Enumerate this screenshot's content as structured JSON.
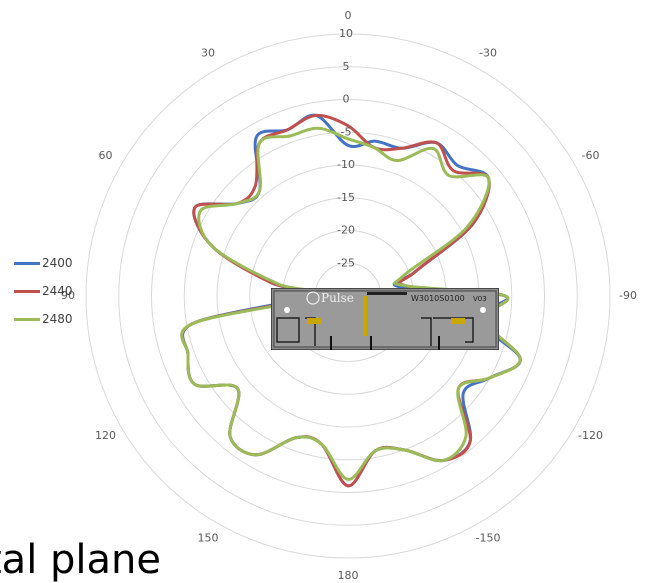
{
  "chart_data": {
    "type": "polar-line",
    "radial_ticks": [
      -25,
      -20,
      -15,
      -10,
      -5,
      0,
      5,
      10
    ],
    "rlim": [
      -30,
      10
    ],
    "angle_ticks": [
      0,
      -30,
      -60,
      -90,
      -120,
      -150,
      180,
      150,
      120,
      90,
      60,
      30
    ],
    "grid": true,
    "legend_position": "left",
    "series": [
      {
        "name": "2400",
        "color": "#4472c4",
        "angles": [
          0,
          10,
          20,
          30,
          40,
          50,
          60,
          70,
          80,
          90,
          100,
          110,
          120,
          130,
          140,
          150,
          160,
          170,
          180,
          190,
          200,
          210,
          220,
          230,
          240,
          250,
          260,
          270,
          280,
          290,
          300,
          310,
          320,
          330,
          340,
          350
        ],
        "values": [
          -7,
          -2,
          -3,
          -2,
          -9,
          -8,
          -3,
          -8,
          -18,
          -24,
          -6,
          -4,
          -3,
          -8,
          -2,
          -2,
          -7,
          -7,
          -1,
          -6,
          -5,
          -1,
          -1,
          -7,
          -5,
          -2,
          -10,
          -6,
          -22,
          -19,
          -8,
          -2,
          -4,
          -3,
          -6,
          -6
        ]
      },
      {
        "name": "2440",
        "color": "#c0504d",
        "angles": [
          0,
          10,
          20,
          30,
          40,
          50,
          60,
          70,
          80,
          90,
          100,
          110,
          120,
          130,
          140,
          150,
          160,
          170,
          180,
          190,
          200,
          210,
          220,
          230,
          240,
          250,
          260,
          270,
          280,
          290,
          300,
          310,
          320,
          330,
          340,
          350
        ],
        "values": [
          -4,
          -2,
          -3,
          -3,
          -8,
          -8,
          -3,
          -8,
          -18,
          -25,
          -6,
          -4,
          -3,
          -8,
          -2,
          -2,
          -7,
          -7,
          -1,
          -6,
          -5,
          -1,
          -1,
          -8,
          -5,
          -2,
          -9,
          -6,
          -21,
          -19,
          -8,
          -2,
          -5,
          -3,
          -6,
          -7
        ]
      },
      {
        "name": "2480",
        "color": "#9bbb59",
        "angles": [
          0,
          10,
          20,
          30,
          40,
          50,
          60,
          70,
          80,
          90,
          100,
          110,
          120,
          130,
          140,
          150,
          160,
          170,
          180,
          190,
          200,
          210,
          220,
          230,
          240,
          250,
          260,
          270,
          280,
          290,
          300,
          310,
          320,
          330,
          340,
          350
        ],
        "values": [
          -6,
          -4,
          -4,
          -3,
          -9,
          -8,
          -4,
          -8,
          -19,
          -26,
          -6,
          -4,
          -3,
          -8,
          -2,
          -2,
          -7,
          -7,
          -2,
          -6,
          -5,
          -1,
          -2,
          -8,
          -5,
          -2,
          -9,
          -6,
          -21,
          -21,
          -9,
          -2,
          -6,
          -4,
          -8,
          -7
        ]
      }
    ]
  },
  "module": {
    "brand": "Pulse",
    "part_number": "W3010S0100",
    "rev": "V03"
  },
  "caption": "tal plane"
}
